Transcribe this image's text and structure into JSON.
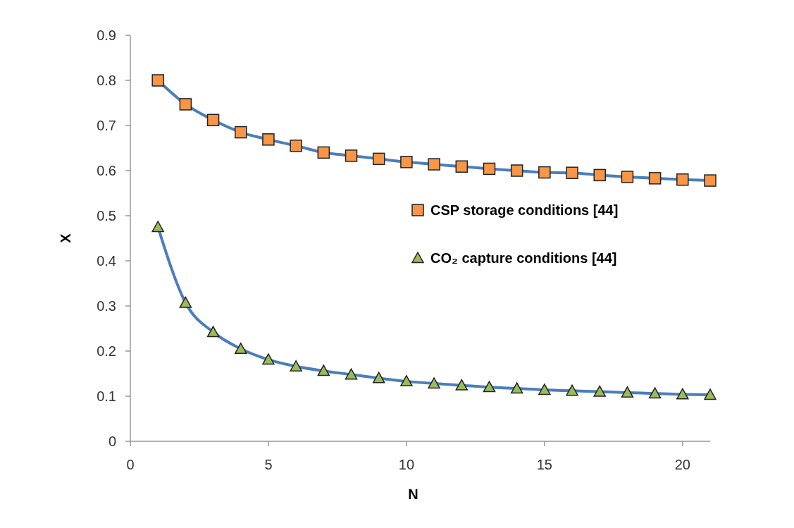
{
  "chart_data": {
    "type": "line",
    "xlabel": "N",
    "ylabel": "X",
    "x": [
      1,
      2,
      3,
      4,
      5,
      6,
      7,
      8,
      9,
      10,
      11,
      12,
      13,
      14,
      15,
      16,
      17,
      18,
      19,
      20,
      21
    ],
    "xlim": [
      0,
      21
    ],
    "xticks": [
      0,
      5,
      10,
      15,
      20
    ],
    "ylim": [
      0,
      0.9
    ],
    "yticks": [
      0,
      0.1,
      0.2,
      0.3,
      0.4,
      0.5,
      0.6,
      0.7,
      0.8,
      0.9
    ],
    "grid": false,
    "legend": "right",
    "series": [
      {
        "name": "CSP storage conditions [44]",
        "color": "#f79646",
        "marker": "square",
        "values": [
          0.8,
          0.747,
          0.712,
          0.685,
          0.669,
          0.655,
          0.64,
          0.633,
          0.626,
          0.619,
          0.614,
          0.609,
          0.604,
          0.6,
          0.596,
          0.595,
          0.59,
          0.586,
          0.583,
          0.58,
          0.578
        ]
      },
      {
        "name": "CO₂ capture conditions [44]",
        "color": "#9bbb59",
        "marker": "triangle",
        "values": [
          0.475,
          0.307,
          0.242,
          0.205,
          0.181,
          0.166,
          0.156,
          0.148,
          0.14,
          0.133,
          0.128,
          0.124,
          0.12,
          0.117,
          0.114,
          0.112,
          0.11,
          0.108,
          0.106,
          0.104,
          0.103
        ]
      }
    ]
  }
}
